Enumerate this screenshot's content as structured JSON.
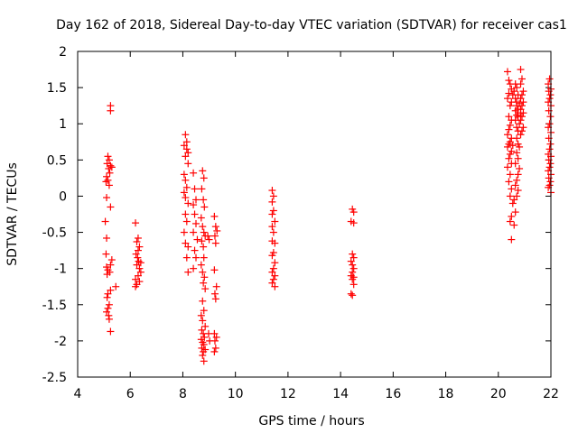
{
  "chart_data": {
    "type": "scatter",
    "title": "Day 162 of 2018, Sidereal Day-to-day VTEC variation (SDTVAR) for receiver cas1",
    "xlabel": "GPS time / hours",
    "ylabel": "SDTVAR / TECUs",
    "xlim": [
      4,
      22
    ],
    "ylim": [
      -2.5,
      2
    ],
    "xticks": [
      4,
      6,
      8,
      10,
      12,
      14,
      16,
      18,
      20,
      22
    ],
    "yticks": [
      -2.5,
      -2,
      -1.5,
      -1,
      -0.5,
      0,
      0.5,
      1,
      1.5,
      2
    ],
    "ytick_labels": [
      "-2.5",
      "-2",
      "-1.5",
      "-1",
      "-0.5",
      "0",
      "0.5",
      "1",
      "1.5",
      "2"
    ],
    "grid": false,
    "marker": "+",
    "color": "#ff0000",
    "series": [
      {
        "name": "SDTVAR",
        "points": [
          [
            5.25,
            1.25
          ],
          [
            5.25,
            1.18
          ],
          [
            5.15,
            0.55
          ],
          [
            5.2,
            0.5
          ],
          [
            5.12,
            0.45
          ],
          [
            5.25,
            0.42
          ],
          [
            5.3,
            0.4
          ],
          [
            5.18,
            0.38
          ],
          [
            5.22,
            0.32
          ],
          [
            5.1,
            0.27
          ],
          [
            5.15,
            0.22
          ],
          [
            5.08,
            0.2
          ],
          [
            5.2,
            0.15
          ],
          [
            5.1,
            -0.02
          ],
          [
            5.25,
            -0.15
          ],
          [
            5.05,
            -0.35
          ],
          [
            5.1,
            -0.58
          ],
          [
            5.08,
            -0.8
          ],
          [
            5.3,
            -0.88
          ],
          [
            5.25,
            -0.95
          ],
          [
            5.1,
            -0.98
          ],
          [
            5.15,
            -1.02
          ],
          [
            5.22,
            -1.05
          ],
          [
            5.12,
            -1.08
          ],
          [
            5.45,
            -1.25
          ],
          [
            5.25,
            -1.3
          ],
          [
            5.15,
            -1.35
          ],
          [
            5.12,
            -1.4
          ],
          [
            5.2,
            -1.5
          ],
          [
            5.15,
            -1.55
          ],
          [
            5.1,
            -1.6
          ],
          [
            5.18,
            -1.65
          ],
          [
            5.2,
            -1.7
          ],
          [
            5.25,
            -1.87
          ],
          [
            6.2,
            -0.37
          ],
          [
            6.3,
            -0.58
          ],
          [
            6.25,
            -0.63
          ],
          [
            6.35,
            -0.7
          ],
          [
            6.3,
            -0.75
          ],
          [
            6.22,
            -0.8
          ],
          [
            6.28,
            -0.85
          ],
          [
            6.32,
            -0.9
          ],
          [
            6.4,
            -0.92
          ],
          [
            6.25,
            -0.95
          ],
          [
            6.35,
            -1.0
          ],
          [
            6.4,
            -1.05
          ],
          [
            6.3,
            -1.1
          ],
          [
            6.2,
            -1.15
          ],
          [
            6.35,
            -1.18
          ],
          [
            6.25,
            -1.22
          ],
          [
            6.2,
            -1.25
          ],
          [
            8.1,
            0.85
          ],
          [
            8.15,
            0.75
          ],
          [
            8.05,
            0.7
          ],
          [
            8.15,
            0.65
          ],
          [
            8.2,
            0.6
          ],
          [
            8.1,
            0.55
          ],
          [
            8.2,
            0.45
          ],
          [
            8.05,
            0.3
          ],
          [
            8.1,
            0.22
          ],
          [
            8.15,
            0.12
          ],
          [
            8.05,
            0.05
          ],
          [
            8.1,
            -0.02
          ],
          [
            8.2,
            -0.1
          ],
          [
            8.1,
            -0.25
          ],
          [
            8.15,
            -0.35
          ],
          [
            8.05,
            -0.5
          ],
          [
            8.1,
            -0.65
          ],
          [
            8.2,
            -0.7
          ],
          [
            8.15,
            -0.85
          ],
          [
            8.2,
            -1.05
          ],
          [
            8.4,
            0.32
          ],
          [
            8.45,
            0.1
          ],
          [
            8.5,
            -0.05
          ],
          [
            8.4,
            -0.12
          ],
          [
            8.45,
            -0.25
          ],
          [
            8.5,
            -0.38
          ],
          [
            8.4,
            -0.5
          ],
          [
            8.55,
            -0.6
          ],
          [
            8.45,
            -0.75
          ],
          [
            8.5,
            -0.85
          ],
          [
            8.4,
            -1.0
          ],
          [
            8.75,
            0.35
          ],
          [
            8.8,
            0.25
          ],
          [
            8.72,
            0.1
          ],
          [
            8.78,
            -0.05
          ],
          [
            8.82,
            -0.15
          ],
          [
            8.7,
            -0.3
          ],
          [
            8.75,
            -0.42
          ],
          [
            8.8,
            -0.5
          ],
          [
            8.85,
            -0.55
          ],
          [
            8.72,
            -0.62
          ],
          [
            8.78,
            -0.7
          ],
          [
            8.8,
            -0.85
          ],
          [
            8.7,
            -0.95
          ],
          [
            8.75,
            -1.05
          ],
          [
            8.82,
            -1.12
          ],
          [
            8.78,
            -1.2
          ],
          [
            8.85,
            -1.28
          ],
          [
            8.75,
            -1.45
          ],
          [
            8.8,
            -1.58
          ],
          [
            8.7,
            -1.65
          ],
          [
            8.75,
            -1.72
          ],
          [
            8.85,
            -1.8
          ],
          [
            8.72,
            -1.85
          ],
          [
            8.78,
            -1.9
          ],
          [
            8.82,
            -1.95
          ],
          [
            8.7,
            -1.98
          ],
          [
            8.75,
            -2.02
          ],
          [
            8.8,
            -2.05
          ],
          [
            8.72,
            -2.1
          ],
          [
            8.85,
            -2.12
          ],
          [
            8.78,
            -2.15
          ],
          [
            8.75,
            -2.2
          ],
          [
            8.8,
            -2.28
          ],
          [
            8.95,
            -0.55
          ],
          [
            9.0,
            -0.6
          ],
          [
            8.98,
            -1.9
          ],
          [
            9.02,
            -2.0
          ],
          [
            9.2,
            -0.28
          ],
          [
            9.25,
            -0.42
          ],
          [
            9.3,
            -0.48
          ],
          [
            9.22,
            -0.55
          ],
          [
            9.25,
            -0.65
          ],
          [
            9.2,
            -1.02
          ],
          [
            9.28,
            -1.25
          ],
          [
            9.22,
            -1.35
          ],
          [
            9.25,
            -1.42
          ],
          [
            9.2,
            -1.9
          ],
          [
            9.28,
            -1.95
          ],
          [
            9.22,
            -2.0
          ],
          [
            9.25,
            -2.1
          ],
          [
            9.2,
            -2.15
          ],
          [
            11.4,
            0.08
          ],
          [
            11.45,
            0.0
          ],
          [
            11.4,
            -0.08
          ],
          [
            11.45,
            -0.2
          ],
          [
            11.4,
            -0.25
          ],
          [
            11.5,
            -0.35
          ],
          [
            11.4,
            -0.42
          ],
          [
            11.45,
            -0.5
          ],
          [
            11.4,
            -0.62
          ],
          [
            11.5,
            -0.65
          ],
          [
            11.45,
            -0.78
          ],
          [
            11.4,
            -0.82
          ],
          [
            11.5,
            -0.92
          ],
          [
            11.45,
            -1.0
          ],
          [
            11.4,
            -1.05
          ],
          [
            11.5,
            -1.1
          ],
          [
            11.45,
            -1.15
          ],
          [
            11.4,
            -1.2
          ],
          [
            11.5,
            -1.25
          ],
          [
            14.45,
            -0.18
          ],
          [
            14.5,
            -0.22
          ],
          [
            14.4,
            -0.35
          ],
          [
            14.5,
            -0.37
          ],
          [
            14.45,
            -0.8
          ],
          [
            14.5,
            -0.85
          ],
          [
            14.4,
            -0.9
          ],
          [
            14.45,
            -0.95
          ],
          [
            14.5,
            -1.0
          ],
          [
            14.45,
            -1.05
          ],
          [
            14.4,
            -1.1
          ],
          [
            14.5,
            -1.12
          ],
          [
            14.45,
            -1.15
          ],
          [
            14.5,
            -1.22
          ],
          [
            14.4,
            -1.35
          ],
          [
            14.45,
            -1.37
          ],
          [
            20.35,
            1.72
          ],
          [
            20.4,
            1.6
          ],
          [
            20.45,
            1.55
          ],
          [
            20.5,
            1.48
          ],
          [
            20.4,
            1.42
          ],
          [
            20.55,
            1.4
          ],
          [
            20.35,
            1.35
          ],
          [
            20.5,
            1.3
          ],
          [
            20.45,
            1.25
          ],
          [
            20.4,
            1.1
          ],
          [
            20.5,
            1.05
          ],
          [
            20.45,
            0.98
          ],
          [
            20.4,
            0.92
          ],
          [
            20.35,
            0.85
          ],
          [
            20.5,
            0.8
          ],
          [
            20.45,
            0.75
          ],
          [
            20.4,
            0.72
          ],
          [
            20.55,
            0.7
          ],
          [
            20.35,
            0.68
          ],
          [
            20.5,
            0.62
          ],
          [
            20.45,
            0.58
          ],
          [
            20.4,
            0.52
          ],
          [
            20.5,
            0.45
          ],
          [
            20.35,
            0.4
          ],
          [
            20.45,
            0.3
          ],
          [
            20.4,
            0.2
          ],
          [
            20.5,
            0.1
          ],
          [
            20.45,
            0.0
          ],
          [
            20.55,
            -0.1
          ],
          [
            20.5,
            -0.28
          ],
          [
            20.45,
            -0.35
          ],
          [
            20.5,
            -0.6
          ],
          [
            20.65,
            1.55
          ],
          [
            20.7,
            1.5
          ],
          [
            20.6,
            1.45
          ],
          [
            20.75,
            1.4
          ],
          [
            20.65,
            1.35
          ],
          [
            20.7,
            1.3
          ],
          [
            20.8,
            1.28
          ],
          [
            20.7,
            1.25
          ],
          [
            20.75,
            1.2
          ],
          [
            20.65,
            1.18
          ],
          [
            20.85,
            1.15
          ],
          [
            20.7,
            1.12
          ],
          [
            20.75,
            1.1
          ],
          [
            20.65,
            1.05
          ],
          [
            20.8,
            1.0
          ],
          [
            20.7,
            0.95
          ],
          [
            20.75,
            0.9
          ],
          [
            20.85,
            0.85
          ],
          [
            20.7,
            0.8
          ],
          [
            20.75,
            0.72
          ],
          [
            20.8,
            0.68
          ],
          [
            20.7,
            0.6
          ],
          [
            20.75,
            0.52
          ],
          [
            20.65,
            0.45
          ],
          [
            20.8,
            0.38
          ],
          [
            20.75,
            0.3
          ],
          [
            20.7,
            0.22
          ],
          [
            20.65,
            0.15
          ],
          [
            20.75,
            0.08
          ],
          [
            20.7,
            0.0
          ],
          [
            20.6,
            -0.05
          ],
          [
            20.65,
            -0.22
          ],
          [
            20.6,
            -0.4
          ],
          [
            20.85,
            1.75
          ],
          [
            20.9,
            1.62
          ],
          [
            20.85,
            1.55
          ],
          [
            20.95,
            1.45
          ],
          [
            20.9,
            1.4
          ],
          [
            20.85,
            1.35
          ],
          [
            20.95,
            1.3
          ],
          [
            20.9,
            1.25
          ],
          [
            20.85,
            1.2
          ],
          [
            20.95,
            1.15
          ],
          [
            20.9,
            1.1
          ],
          [
            20.85,
            1.05
          ],
          [
            20.95,
            0.95
          ],
          [
            20.9,
            0.9
          ],
          [
            21.95,
            1.62
          ],
          [
            21.9,
            1.55
          ],
          [
            22.0,
            1.48
          ],
          [
            21.92,
            1.45
          ],
          [
            21.98,
            1.4
          ],
          [
            21.95,
            1.35
          ],
          [
            21.9,
            1.3
          ],
          [
            22.0,
            1.25
          ],
          [
            21.92,
            1.18
          ],
          [
            21.98,
            1.1
          ],
          [
            21.95,
            1.0
          ],
          [
            21.9,
            0.95
          ],
          [
            22.0,
            0.88
          ],
          [
            21.92,
            0.8
          ],
          [
            21.98,
            0.72
          ],
          [
            21.95,
            0.65
          ],
          [
            21.9,
            0.58
          ],
          [
            22.0,
            0.55
          ],
          [
            21.92,
            0.5
          ],
          [
            21.98,
            0.45
          ],
          [
            21.95,
            0.4
          ],
          [
            21.9,
            0.35
          ],
          [
            22.0,
            0.3
          ],
          [
            21.92,
            0.25
          ],
          [
            21.98,
            0.2
          ],
          [
            21.95,
            0.15
          ],
          [
            21.9,
            0.12
          ],
          [
            22.0,
            0.05
          ]
        ]
      }
    ]
  }
}
